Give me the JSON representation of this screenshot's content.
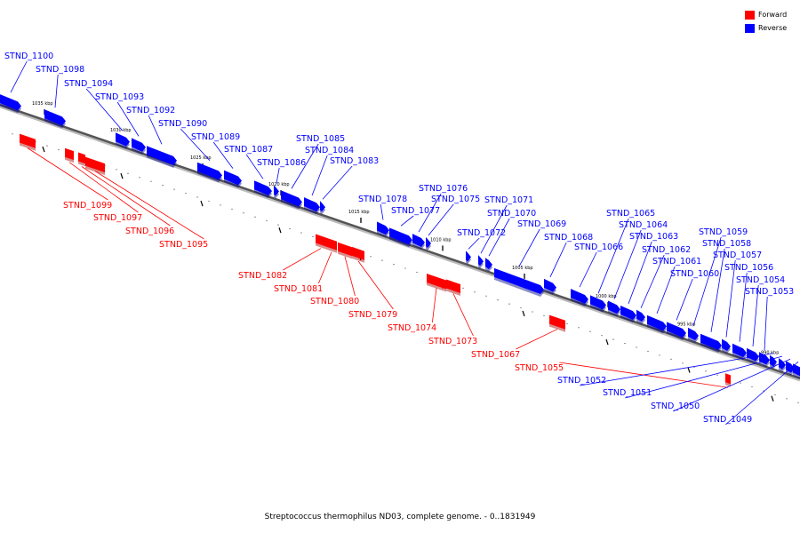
{
  "caption": "Streptococcus thermophilus ND03, complete genome. - 0..1831949",
  "legend": {
    "forward_label": "Forward",
    "reverse_label": "Reverse",
    "forward_color": "#ff0000",
    "reverse_color": "#0000ff"
  },
  "ticks": [
    "1035 kbp",
    "1030 kbp",
    "1025 kbp",
    "1020 kbp",
    "1015 kbp",
    "1010 kbp",
    "1005 kbp",
    "1000 kbp",
    "995 kbp",
    "990 kbp"
  ],
  "genes": [
    {
      "name": "STND_1100",
      "strand": "reverse"
    },
    {
      "name": "STND_1099",
      "strand": "forward"
    },
    {
      "name": "STND_1098",
      "strand": "reverse"
    },
    {
      "name": "STND_1097",
      "strand": "forward"
    },
    {
      "name": "STND_1096",
      "strand": "forward"
    },
    {
      "name": "STND_1095",
      "strand": "forward"
    },
    {
      "name": "STND_1094",
      "strand": "reverse"
    },
    {
      "name": "STND_1093",
      "strand": "reverse"
    },
    {
      "name": "STND_1092",
      "strand": "reverse"
    },
    {
      "name": "STND_1090",
      "strand": "reverse"
    },
    {
      "name": "STND_1089",
      "strand": "reverse"
    },
    {
      "name": "STND_1087",
      "strand": "reverse"
    },
    {
      "name": "STND_1086",
      "strand": "reverse"
    },
    {
      "name": "STND_1085",
      "strand": "reverse"
    },
    {
      "name": "STND_1084",
      "strand": "reverse"
    },
    {
      "name": "STND_1083",
      "strand": "reverse"
    },
    {
      "name": "STND_1082",
      "strand": "forward"
    },
    {
      "name": "STND_1081",
      "strand": "forward"
    },
    {
      "name": "STND_1080",
      "strand": "forward"
    },
    {
      "name": "STND_1079",
      "strand": "forward"
    },
    {
      "name": "STND_1078",
      "strand": "reverse"
    },
    {
      "name": "STND_1077",
      "strand": "reverse"
    },
    {
      "name": "STND_1076",
      "strand": "reverse"
    },
    {
      "name": "STND_1075",
      "strand": "reverse"
    },
    {
      "name": "STND_1074",
      "strand": "forward"
    },
    {
      "name": "STND_1073",
      "strand": "forward"
    },
    {
      "name": "STND_1072",
      "strand": "reverse"
    },
    {
      "name": "STND_1071",
      "strand": "reverse"
    },
    {
      "name": "STND_1070",
      "strand": "reverse"
    },
    {
      "name": "STND_1069",
      "strand": "reverse"
    },
    {
      "name": "STND_1068",
      "strand": "reverse"
    },
    {
      "name": "STND_1067",
      "strand": "forward"
    },
    {
      "name": "STND_1066",
      "strand": "reverse"
    },
    {
      "name": "STND_1065",
      "strand": "reverse"
    },
    {
      "name": "STND_1064",
      "strand": "reverse"
    },
    {
      "name": "STND_1063",
      "strand": "reverse"
    },
    {
      "name": "STND_1062",
      "strand": "reverse"
    },
    {
      "name": "STND_1061",
      "strand": "reverse"
    },
    {
      "name": "STND_1060",
      "strand": "reverse"
    },
    {
      "name": "STND_1059",
      "strand": "reverse"
    },
    {
      "name": "STND_1058",
      "strand": "reverse"
    },
    {
      "name": "STND_1057",
      "strand": "reverse"
    },
    {
      "name": "STND_1056",
      "strand": "reverse"
    },
    {
      "name": "STND_1055",
      "strand": "forward"
    },
    {
      "name": "STND_1054",
      "strand": "reverse"
    },
    {
      "name": "STND_1053",
      "strand": "reverse"
    },
    {
      "name": "STND_1052",
      "strand": "reverse"
    },
    {
      "name": "STND_1051",
      "strand": "reverse"
    },
    {
      "name": "STND_1050",
      "strand": "reverse"
    },
    {
      "name": "STND_1049",
      "strand": "reverse"
    }
  ]
}
